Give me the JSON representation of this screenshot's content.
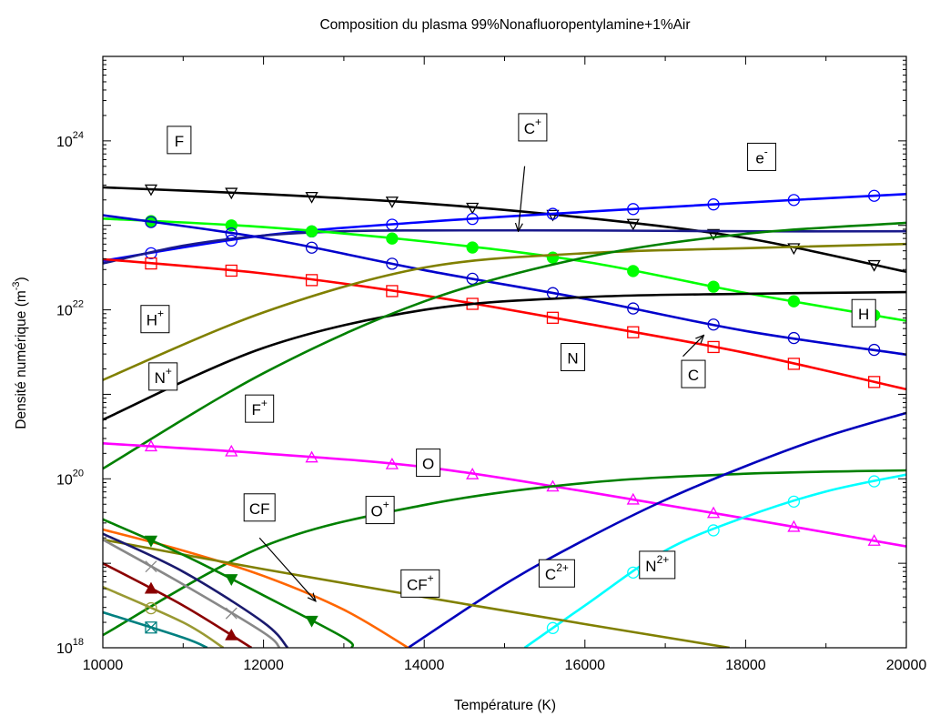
{
  "chart_data": {
    "type": "line",
    "title": "Composition du plasma 99%Nonafluoropentylamine+1%Air",
    "xlabel": "Température (K)",
    "ylabel_main": "Densité numérique (m",
    "ylabel_sup": "-3",
    "ylabel_end": ")",
    "xscale": "linear",
    "yscale": "log",
    "xlim": [
      10000,
      20000
    ],
    "ylim_exp": [
      18,
      25
    ],
    "xticks": [
      "10000",
      "12000",
      "14000",
      "16000",
      "18000",
      "20000"
    ],
    "yticks": [
      {
        "base": "10",
        "exp": "18"
      },
      {
        "base": "10",
        "exp": "20"
      },
      {
        "base": "10",
        "exp": "22"
      },
      {
        "base": "10",
        "exp": "24"
      }
    ],
    "grid": false,
    "series": [
      {
        "id": "F",
        "color": "#000000",
        "marker": "triangle-down",
        "x": [
          10000,
          12000,
          14000,
          16000,
          18000,
          20000
        ],
        "logy": [
          23.45,
          23.37,
          23.26,
          23.09,
          22.85,
          22.45
        ]
      },
      {
        "id": "e-",
        "color": "#0000ff",
        "marker": "circle",
        "x": [
          10000,
          12000,
          14000,
          16000,
          18000,
          20000
        ],
        "logy": [
          22.58,
          22.88,
          23.04,
          23.16,
          23.27,
          23.37
        ]
      },
      {
        "id": "C+",
        "color": "#1a1a8c",
        "marker": "none",
        "x": [
          10000,
          11000,
          12000,
          13000,
          14000,
          16000,
          18000,
          20000
        ],
        "logy": [
          22.55,
          22.76,
          22.88,
          22.93,
          22.94,
          22.94,
          22.93,
          22.93
        ]
      },
      {
        "id": "H",
        "color": "#00ff00",
        "marker": "circle-filled",
        "x": [
          10000,
          12000,
          14000,
          16000,
          18000,
          20000
        ],
        "logy": [
          23.08,
          22.98,
          22.81,
          22.57,
          22.2,
          21.87
        ]
      },
      {
        "id": "C",
        "color": "#0000cc",
        "marker": "circle",
        "x": [
          10000,
          12000,
          14000,
          16000,
          18000,
          20000
        ],
        "logy": [
          23.12,
          22.85,
          22.47,
          22.13,
          21.75,
          21.47
        ]
      },
      {
        "id": "N",
        "color": "#ff0000",
        "marker": "square",
        "x": [
          10000,
          12000,
          14000,
          16000,
          18000,
          20000
        ],
        "logy": [
          22.6,
          22.43,
          22.17,
          21.84,
          21.49,
          21.06
        ]
      },
      {
        "id": "H+",
        "color": "#808000",
        "marker": "none",
        "x": [
          10000,
          12000,
          14000,
          16000,
          18000,
          20000
        ],
        "logy": [
          21.17,
          21.97,
          22.5,
          22.67,
          22.73,
          22.78
        ]
      },
      {
        "id": "N+",
        "color": "#000000",
        "marker": "none",
        "x": [
          10000,
          12000,
          14000,
          16000,
          18000,
          20000
        ],
        "logy": [
          20.7,
          21.55,
          22.0,
          22.15,
          22.19,
          22.21
        ]
      },
      {
        "id": "F+",
        "color": "#008000",
        "marker": "none",
        "x": [
          10000,
          12000,
          14000,
          16000,
          18000,
          20000
        ],
        "logy": [
          20.12,
          21.25,
          22.1,
          22.62,
          22.9,
          23.03
        ]
      },
      {
        "id": "O",
        "color": "#ff00ff",
        "marker": "triangle-up",
        "x": [
          10000,
          12000,
          14000,
          16000,
          18000,
          20000
        ],
        "logy": [
          20.42,
          20.3,
          20.14,
          19.85,
          19.53,
          19.2
        ]
      },
      {
        "id": "O+",
        "color": "#008000",
        "marker": "none",
        "x": [
          10000,
          12000,
          14000,
          16000,
          18000,
          20000
        ],
        "logy": [
          18.15,
          19.2,
          19.69,
          19.95,
          20.06,
          20.1
        ]
      },
      {
        "id": "C2+",
        "color": "#0000bb",
        "marker": "none",
        "x": [
          13800,
          15000,
          16000,
          17000,
          18000,
          19000,
          20000
        ],
        "logy": [
          18.0,
          18.75,
          19.28,
          19.75,
          20.15,
          20.5,
          20.78
        ]
      },
      {
        "id": "N2+",
        "color": "#00ffff",
        "marker": "circle",
        "x": [
          15250,
          16000,
          17000,
          18000,
          19000,
          20000
        ],
        "logy": [
          18.0,
          18.5,
          19.15,
          19.55,
          19.85,
          20.05
        ]
      },
      {
        "id": "CF",
        "color": "#ff6600",
        "marker": "none",
        "x": [
          10000,
          11000,
          12000,
          13000,
          13800
        ],
        "logy": [
          19.4,
          19.15,
          18.85,
          18.45,
          18.0
        ]
      },
      {
        "id": "CF+",
        "color": "#808000",
        "marker": "none",
        "x": [
          10000,
          12000,
          14000,
          16000,
          17800
        ],
        "logy": [
          19.28,
          18.93,
          18.6,
          18.28,
          18.0
        ]
      },
      {
        "id": "s-green-tri",
        "color": "#008000",
        "marker": "triangle-down-filled",
        "x": [
          10000,
          11000,
          12000,
          13000,
          13100
        ],
        "logy": [
          19.52,
          19.1,
          18.62,
          18.12,
          18.0
        ]
      },
      {
        "id": "s-navy",
        "color": "#1a1a6e",
        "marker": "none",
        "x": [
          10000,
          11000,
          12000,
          12300
        ],
        "logy": [
          19.35,
          18.9,
          18.3,
          18.0
        ]
      },
      {
        "id": "s-gray-x",
        "color": "#888888",
        "marker": "x",
        "x": [
          10000,
          11000,
          12000,
          12200
        ],
        "logy": [
          19.28,
          18.75,
          18.18,
          18.0
        ]
      },
      {
        "id": "s-darkred",
        "color": "#8b0000",
        "marker": "triangle-up-filled",
        "x": [
          10000,
          11000,
          11850
        ],
        "logy": [
          19.0,
          18.5,
          18.0
        ]
      },
      {
        "id": "s-olive-o",
        "color": "#999933",
        "marker": "circle",
        "x": [
          10000,
          11000,
          11500
        ],
        "logy": [
          18.72,
          18.3,
          18.0
        ]
      },
      {
        "id": "s-teal",
        "color": "#008080",
        "marker": "square-x",
        "x": [
          10000,
          11000,
          11300
        ],
        "logy": [
          18.42,
          18.12,
          18.0
        ]
      }
    ],
    "labels": [
      {
        "text": "F",
        "sup": "",
        "x": 10950,
        "logy": 24.0
      },
      {
        "text": "C",
        "sup": "+",
        "x": 15350,
        "logy": 24.15
      },
      {
        "text": "e",
        "sup": "-",
        "x": 18200,
        "logy": 23.8
      },
      {
        "text": "H",
        "sup": "+",
        "x": 10650,
        "logy": 21.88
      },
      {
        "text": "H",
        "sup": "",
        "x": 19470,
        "logy": 21.95
      },
      {
        "text": "N",
        "sup": "",
        "x": 15850,
        "logy": 21.43
      },
      {
        "text": "C",
        "sup": "",
        "x": 17350,
        "logy": 21.23
      },
      {
        "text": "N",
        "sup": "+",
        "x": 10750,
        "logy": 21.2
      },
      {
        "text": "F",
        "sup": "+",
        "x": 11950,
        "logy": 20.82
      },
      {
        "text": "O",
        "sup": "",
        "x": 14050,
        "logy": 20.18
      },
      {
        "text": "O",
        "sup": "+",
        "x": 13450,
        "logy": 19.62
      },
      {
        "text": "CF",
        "sup": "",
        "x": 11950,
        "logy": 19.65
      },
      {
        "text": "CF",
        "sup": "+",
        "x": 13950,
        "logy": 18.75
      },
      {
        "text": "C",
        "sup": "2+",
        "x": 15650,
        "logy": 18.87
      },
      {
        "text": "N",
        "sup": "2+",
        "x": 16900,
        "logy": 18.97
      }
    ],
    "arrows": [
      {
        "x1": 15250,
        "y1": 23.7,
        "x2": 15170,
        "y2": 22.93
      },
      {
        "x1": 11950,
        "y1": 19.3,
        "x2": 12650,
        "y2": 18.55
      },
      {
        "x1": 17220,
        "y1": 21.45,
        "x2": 17480,
        "y2": 21.7
      }
    ]
  }
}
